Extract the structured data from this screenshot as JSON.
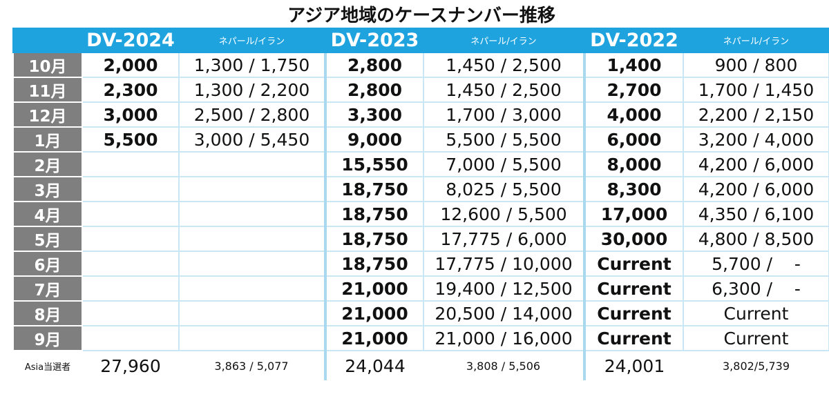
{
  "title": "アジア地域のケースナンバー推移",
  "table": {
    "header": [
      null,
      "DV-2024",
      "ネパール/イラン",
      "DV-2023",
      "ネパール/イラン",
      "DV-2022",
      "ネパール/イラン"
    ],
    "rows": [
      [
        "10月",
        "2,000",
        "1,300 / 1,750",
        "2,800",
        "1,450 / 2,500",
        "1,400",
        "900 / 800"
      ],
      [
        "11月",
        "2,300",
        "1,300 / 2,200",
        "2,800",
        "1,450 / 2,500",
        "2,700",
        "1,700 / 1,450"
      ],
      [
        "12月",
        "3,000",
        "2,500 / 2,800",
        "3,300",
        "1,700 / 3,000",
        "4,000",
        "2,200 / 2,150"
      ],
      [
        "1月",
        "5,500",
        "3,000 / 5,450",
        "9,000",
        "5,500 / 5,500",
        "6,000",
        "3,200 / 4,000"
      ],
      [
        "2月",
        null,
        null,
        "15,550",
        "7,000 / 5,500",
        "8,000",
        "4,200 / 6,000"
      ],
      [
        "3月",
        null,
        null,
        "18,750",
        "8,025 / 5,500",
        "8,300",
        "4,200 / 6,000"
      ],
      [
        "4月",
        null,
        null,
        "18,750",
        "12,600 / 5,500",
        "17,000",
        "4,350 / 6,100"
      ],
      [
        "5月",
        null,
        null,
        "18,750",
        "17,775 / 6,000",
        "30,000",
        "4,800 / 8,500"
      ],
      [
        "6月",
        null,
        null,
        "18,750",
        "17,775 / 10,000",
        "Current",
        "5,700 /    -"
      ],
      [
        "7月",
        null,
        null,
        "21,000",
        "19,400 / 12,500",
        "Current",
        "6,300 /    -"
      ],
      [
        "8月",
        null,
        null,
        "21,000",
        "20,500 / 14,000",
        "Current",
        "Current"
      ],
      [
        "9月",
        null,
        null,
        "21,000",
        "21,000 / 16,000",
        "Current",
        "Current"
      ]
    ],
    "footer": [
      "Asia当選者",
      "27,960",
      "3,863 / 5,077",
      "24,044",
      "3,808 / 5,506",
      "24,001",
      "3,802/5,739"
    ]
  }
}
